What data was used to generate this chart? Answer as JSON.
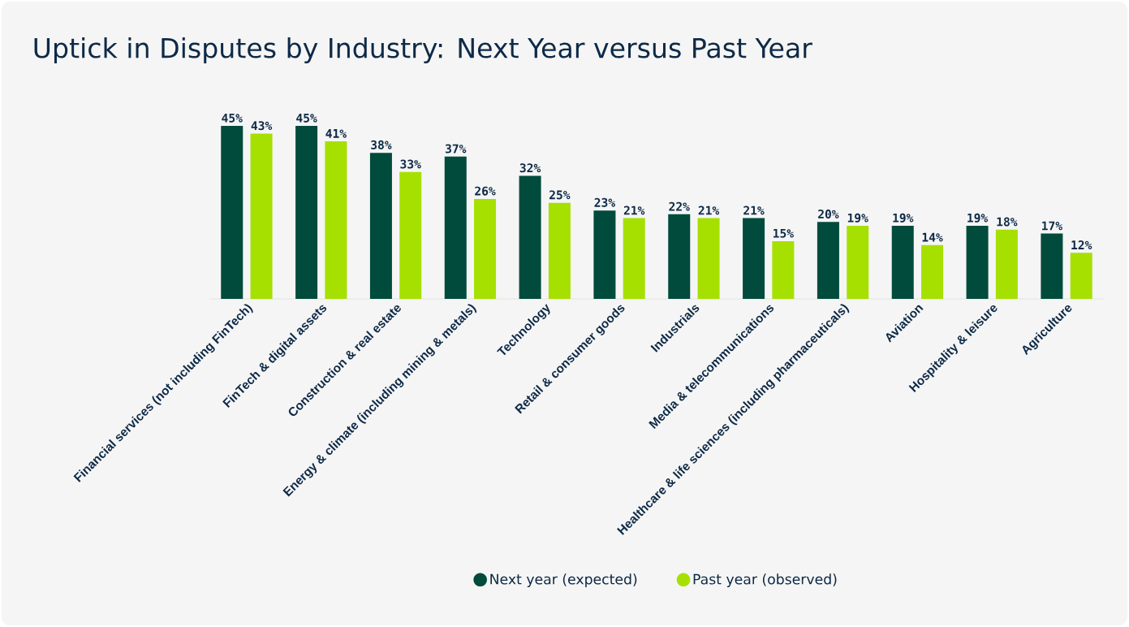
{
  "chart_data": {
    "type": "bar",
    "title": "Uptick in Disputes by Industry: Next Year versus Past Year",
    "categories": [
      "Financial services (not including FinTech)",
      "FinTech & digital assets",
      "Construction & real estate",
      "Energy & climate (including mining & metals)",
      "Technology",
      "Retail & consumer goods",
      "Industrials",
      "Media & telecommunications",
      "Healthcare & life sciences (including pharmaceuticals)",
      "Aviation",
      "Hospitality & leisure",
      "Agriculture"
    ],
    "series": [
      {
        "name": "Next year (expected)",
        "color": "#004b3c",
        "values": [
          45,
          45,
          38,
          37,
          32,
          23,
          22,
          21,
          20,
          19,
          19,
          17
        ],
        "value_labels": [
          "45%",
          "45%",
          "38%",
          "37%",
          "32%",
          "23%",
          "22%",
          "21%",
          "20%",
          "19%",
          "19%",
          "17%"
        ]
      },
      {
        "name": "Past year (observed)",
        "color": "#a6e000",
        "values": [
          43,
          41,
          33,
          26,
          25,
          21,
          21,
          15,
          19,
          14,
          18,
          12
        ],
        "value_labels": [
          "43%",
          "41%",
          "33%",
          "26%",
          "25%",
          "21%",
          "21%",
          "15%",
          "19%",
          "14%",
          "18%",
          "12%"
        ]
      }
    ],
    "legend": "bottom"
  }
}
